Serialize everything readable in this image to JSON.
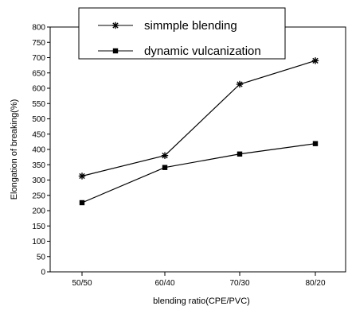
{
  "chart_data": {
    "type": "line",
    "xlabel": "blending ratio(CPE/PVC)",
    "ylabel": "Elongation of breaking(%)",
    "categories": [
      "50/50",
      "60/40",
      "70/30",
      "80/20"
    ],
    "ylim": [
      0,
      800
    ],
    "y_tick_step": 50,
    "grid": false,
    "legend_position": "top-center",
    "series": [
      {
        "name": "simmple blending",
        "marker": "star",
        "values": [
          313,
          380,
          613,
          690
        ]
      },
      {
        "name": "dynamic vulcanization",
        "marker": "square",
        "values": [
          226,
          341,
          385,
          419
        ]
      }
    ]
  }
}
